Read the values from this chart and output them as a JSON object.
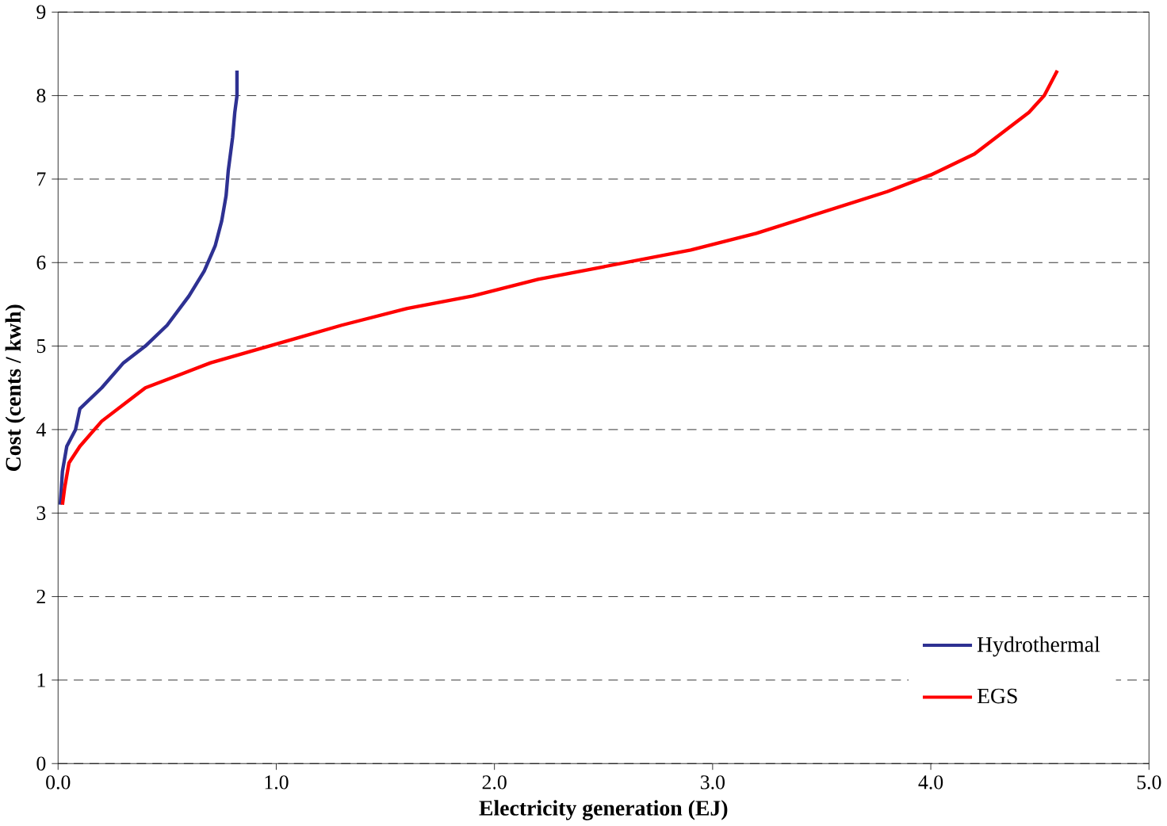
{
  "chart_data": {
    "type": "line",
    "xlabel": "Electricity generation (EJ)",
    "ylabel": "Cost (cents / kwh)",
    "xlim": [
      0,
      5
    ],
    "ylim": [
      0,
      9
    ],
    "xticks": [
      {
        "value": 0,
        "label": "0.0"
      },
      {
        "value": 1,
        "label": "1.0"
      },
      {
        "value": 2,
        "label": "2.0"
      },
      {
        "value": 3,
        "label": "3.0"
      },
      {
        "value": 4,
        "label": "4.0"
      },
      {
        "value": 5,
        "label": "5.0"
      }
    ],
    "yticks": [
      0,
      1,
      2,
      3,
      4,
      5,
      6,
      7,
      8,
      9
    ],
    "grid": "y",
    "legend": "bottom right",
    "marker": "none",
    "line_style": "solid",
    "series": [
      {
        "name": "Hydrothermal",
        "color": "#2e3192",
        "x": [
          0.01,
          0.02,
          0.04,
          0.08,
          0.1,
          0.2,
          0.3,
          0.4,
          0.5,
          0.6,
          0.67,
          0.72,
          0.75,
          0.77,
          0.78,
          0.8,
          0.81,
          0.82,
          0.82
        ],
        "values": [
          3.1,
          3.5,
          3.8,
          4.0,
          4.25,
          4.5,
          4.8,
          5.0,
          5.25,
          5.6,
          5.9,
          6.2,
          6.5,
          6.8,
          7.1,
          7.5,
          7.8,
          8.0,
          8.3
        ]
      },
      {
        "name": "EGS",
        "color": "#ff0000",
        "x": [
          0.02,
          0.03,
          0.05,
          0.1,
          0.2,
          0.3,
          0.4,
          0.55,
          0.7,
          0.9,
          1.1,
          1.3,
          1.6,
          1.9,
          2.2,
          2.5,
          2.9,
          3.2,
          3.5,
          3.8,
          4.0,
          4.2,
          4.35,
          4.45,
          4.52,
          4.58
        ],
        "values": [
          3.1,
          3.3,
          3.6,
          3.8,
          4.1,
          4.3,
          4.5,
          4.65,
          4.8,
          4.95,
          5.1,
          5.25,
          5.45,
          5.6,
          5.8,
          5.95,
          6.15,
          6.35,
          6.6,
          6.85,
          7.05,
          7.3,
          7.6,
          7.8,
          8.0,
          8.3
        ]
      }
    ]
  }
}
